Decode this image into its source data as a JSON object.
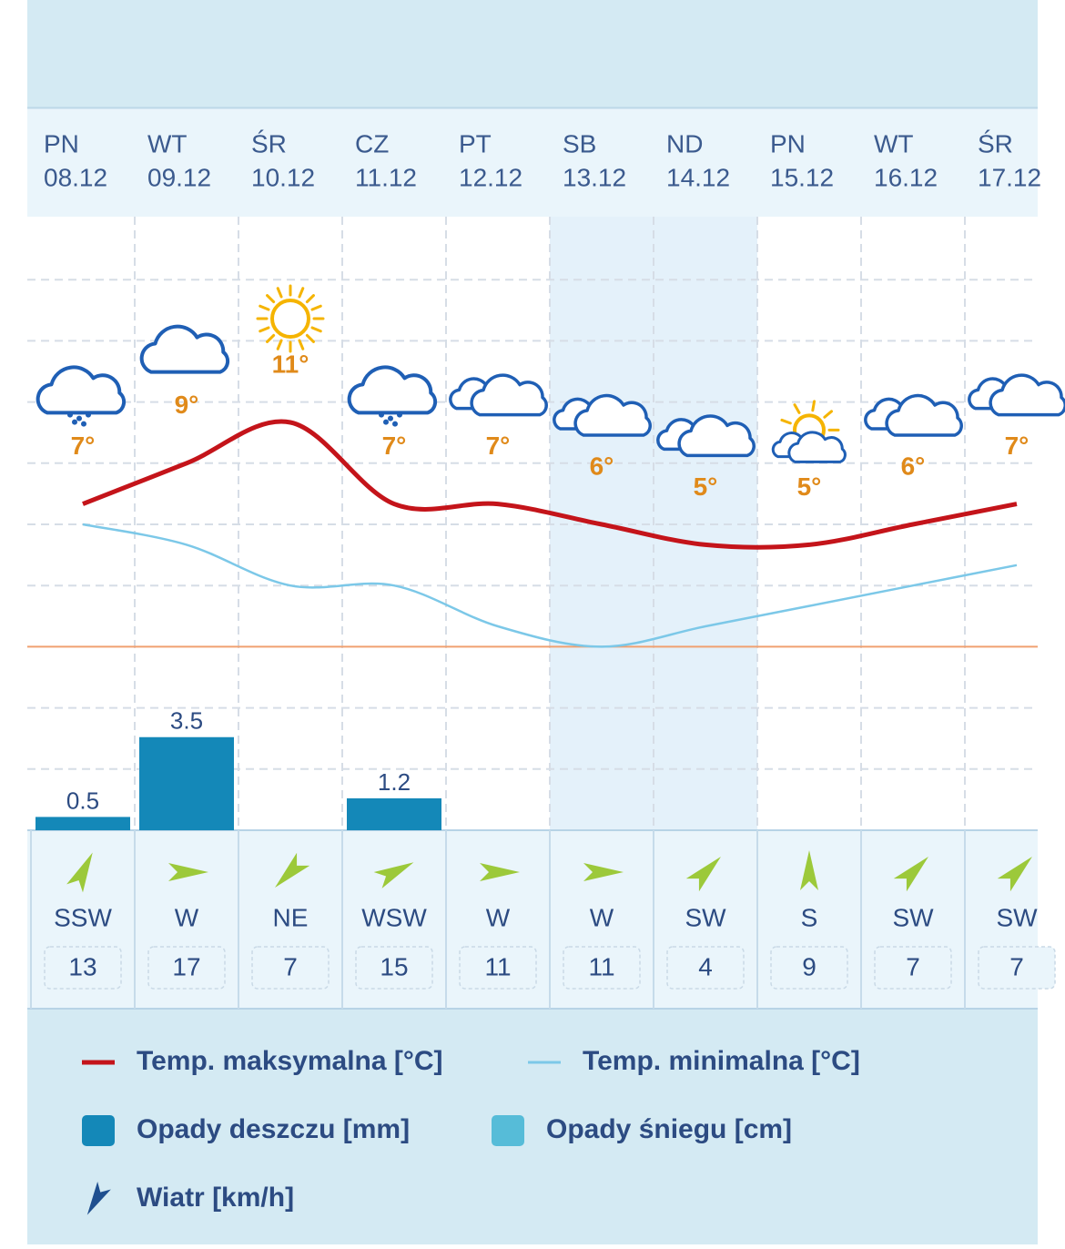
{
  "chart_data": {
    "type": "weather",
    "weekdays": [
      "PN",
      "WT",
      "ŚR",
      "CZ",
      "PT",
      "SB",
      "ND",
      "PN",
      "WT",
      "ŚR"
    ],
    "dates": [
      "08.12",
      "09.12",
      "10.12",
      "11.12",
      "12.12",
      "13.12",
      "14.12",
      "15.12",
      "16.12",
      "17.12"
    ],
    "ylim": [
      -9,
      21
    ],
    "yticks": [
      -6,
      -3,
      0,
      3,
      6,
      9,
      12,
      15,
      18
    ],
    "y2lim": [
      0,
      23
    ],
    "grid": true,
    "series": [
      {
        "name": "Temp. maksymalna [°C]",
        "type": "line",
        "color": "#c4141a",
        "values": [
          7,
          9,
          11,
          7,
          7,
          6,
          5,
          5,
          6,
          7
        ],
        "value_labels": [
          "7°",
          "9°",
          "11°",
          "7°",
          "7°",
          "6°",
          "5°",
          "5°",
          "6°",
          "7°"
        ]
      },
      {
        "name": "Temp. minimalna [°C]",
        "type": "line",
        "color": "#7cc8e8",
        "values": [
          6,
          5,
          3,
          3,
          1,
          0,
          1,
          2,
          3,
          4
        ]
      },
      {
        "name": "Opady deszczu [mm]",
        "type": "bar",
        "axis": "y2",
        "color": "#1488b8",
        "values": [
          0.5,
          3.5,
          null,
          1.2,
          null,
          null,
          null,
          null,
          null,
          null
        ]
      },
      {
        "name": "Opady śniegu [cm]",
        "type": "bar",
        "axis": "y2",
        "color": "#56bcd8",
        "values": [
          null,
          null,
          null,
          null,
          null,
          null,
          null,
          null,
          null,
          null
        ]
      }
    ],
    "wind": {
      "name": "Wiatr [km/h]",
      "color": "#9cc93a",
      "directions": [
        "SSW",
        "W",
        "NE",
        "WSW",
        "W",
        "W",
        "SW",
        "S",
        "SW",
        "SW"
      ],
      "speeds": [
        13,
        17,
        7,
        15,
        11,
        11,
        4,
        9,
        7,
        7
      ]
    }
  }
}
